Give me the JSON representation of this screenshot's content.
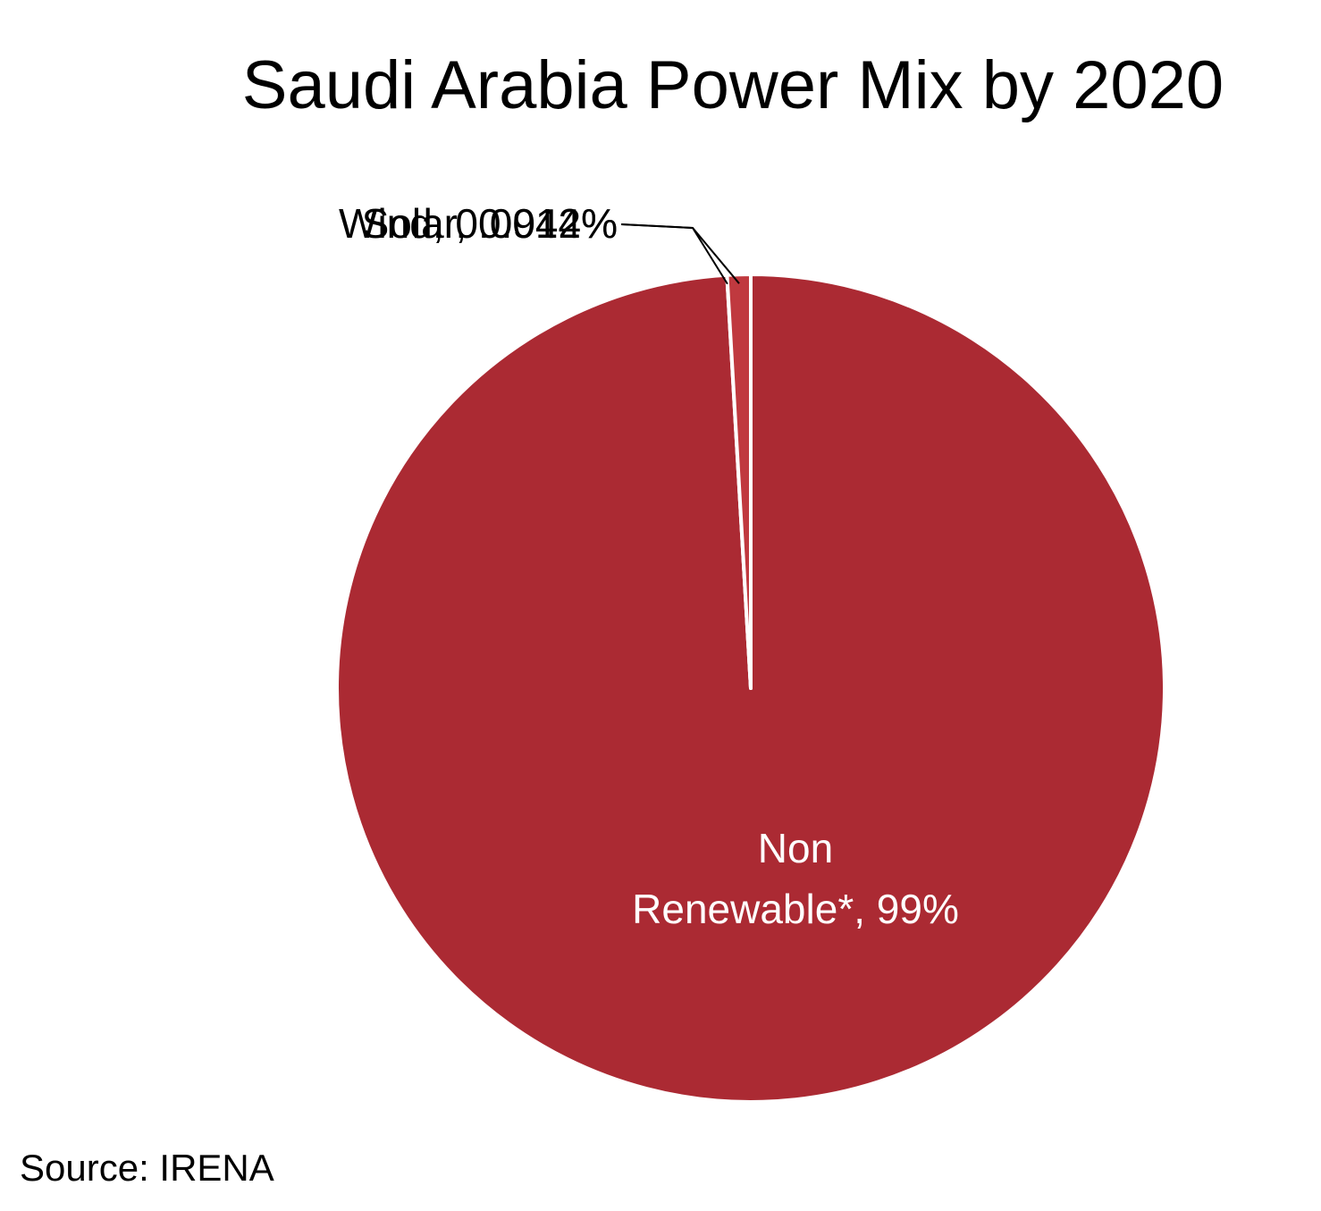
{
  "chart_data": {
    "type": "pie",
    "title": "Saudi Arabia Power Mix by 2020",
    "slices": [
      {
        "label": "Non Renewable*, 99%",
        "label_lines": [
          "Non",
          "Renewable*, 99%"
        ],
        "value": 99.0818,
        "color": "#ab2a33",
        "label_color": "#ffffff"
      },
      {
        "label": "Wind, 0.0042%",
        "label_lines": [
          "Wind, 0.0042%"
        ],
        "value": 0.0042,
        "color": "#ab2a33",
        "label_color": "#000000"
      },
      {
        "label": "Solar, 0.914%",
        "label_lines": [
          "Solar, 0.914%"
        ],
        "value": 0.914,
        "color": "#c0393f",
        "label_color": "#000000"
      }
    ],
    "source": "Source: IRENA"
  }
}
